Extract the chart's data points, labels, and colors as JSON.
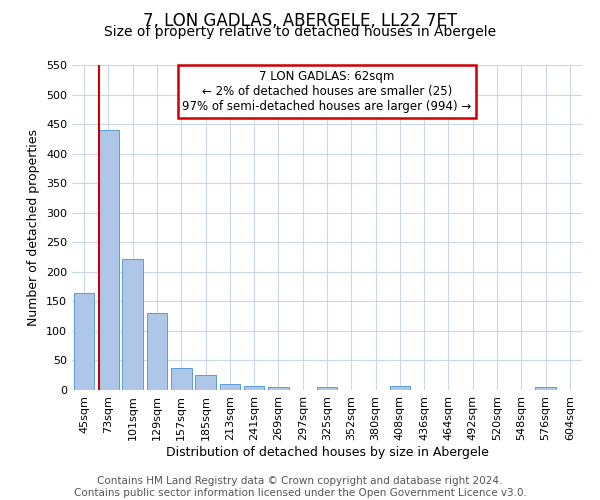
{
  "title": "7, LON GADLAS, ABERGELE, LL22 7ET",
  "subtitle": "Size of property relative to detached houses in Abergele",
  "xlabel": "Distribution of detached houses by size in Abergele",
  "ylabel": "Number of detached properties",
  "footer_line1": "Contains HM Land Registry data © Crown copyright and database right 2024.",
  "footer_line2": "Contains public sector information licensed under the Open Government Licence v3.0.",
  "categories": [
    "45sqm",
    "73sqm",
    "101sqm",
    "129sqm",
    "157sqm",
    "185sqm",
    "213sqm",
    "241sqm",
    "269sqm",
    "297sqm",
    "325sqm",
    "352sqm",
    "380sqm",
    "408sqm",
    "436sqm",
    "464sqm",
    "492sqm",
    "520sqm",
    "548sqm",
    "576sqm",
    "604sqm"
  ],
  "values": [
    165,
    440,
    222,
    130,
    37,
    25,
    11,
    6,
    5,
    0,
    5,
    0,
    0,
    6,
    0,
    0,
    0,
    0,
    0,
    5,
    0
  ],
  "bar_color": "#aec6e8",
  "bar_edge_color": "#5b9bd5",
  "annotation_line1": "7 LON GADLAS: 62sqm",
  "annotation_line2": "← 2% of detached houses are smaller (25)",
  "annotation_line3": "97% of semi-detached houses are larger (994) →",
  "annotation_box_color": "#ffffff",
  "annotation_box_edge_color": "#cc0000",
  "vline_color": "#cc0000",
  "ylim": [
    0,
    550
  ],
  "yticks": [
    0,
    50,
    100,
    150,
    200,
    250,
    300,
    350,
    400,
    450,
    500,
    550
  ],
  "background_color": "#ffffff",
  "grid_color": "#c8d8e8",
  "title_fontsize": 12,
  "subtitle_fontsize": 10,
  "xlabel_fontsize": 9,
  "ylabel_fontsize": 9,
  "tick_fontsize": 8,
  "footer_fontsize": 7.5,
  "annotation_fontsize": 8.5
}
